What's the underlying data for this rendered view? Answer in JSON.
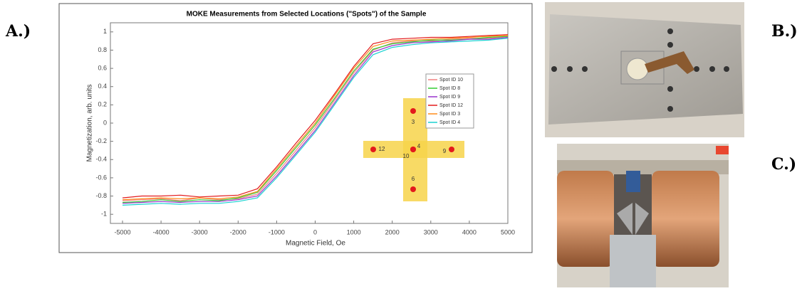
{
  "panel_labels": [
    "A.)",
    "B.)",
    "C.)"
  ],
  "chart_data": {
    "type": "line",
    "title": "MOKE Measurements from Selected Locations (\"Spots\") of the Sample",
    "x_label": "Magnetic Field, Oe",
    "y_label": "Magnetization, arb. units",
    "x": [
      -5000,
      -4500,
      -4000,
      -3500,
      -3000,
      -2500,
      -2000,
      -1500,
      -1000,
      -500,
      0,
      500,
      1000,
      1500,
      2000,
      2500,
      3000,
      3500,
      4000,
      4500,
      5000
    ],
    "series": [
      {
        "name": "Spot ID 10",
        "color": "#f08080",
        "values": [
          -0.85,
          -0.84,
          -0.83,
          -0.85,
          -0.82,
          -0.84,
          -0.83,
          -0.78,
          -0.55,
          -0.3,
          -0.05,
          0.25,
          0.55,
          0.8,
          0.88,
          0.9,
          0.9,
          0.92,
          0.93,
          0.93,
          0.95
        ]
      },
      {
        "name": "Spot ID 8",
        "color": "#33cc33",
        "values": [
          -0.87,
          -0.86,
          -0.84,
          -0.86,
          -0.84,
          -0.85,
          -0.82,
          -0.76,
          -0.52,
          -0.27,
          -0.02,
          0.27,
          0.57,
          0.81,
          0.87,
          0.89,
          0.91,
          0.91,
          0.92,
          0.94,
          0.95
        ]
      },
      {
        "name": "Spot ID 9",
        "color": "#9933cc",
        "values": [
          -0.88,
          -0.87,
          -0.86,
          -0.87,
          -0.86,
          -0.86,
          -0.84,
          -0.8,
          -0.58,
          -0.33,
          -0.08,
          0.22,
          0.52,
          0.78,
          0.85,
          0.88,
          0.89,
          0.9,
          0.92,
          0.92,
          0.94
        ]
      },
      {
        "name": "Spot ID 12",
        "color": "#e31a1c",
        "values": [
          -0.82,
          -0.8,
          -0.8,
          -0.79,
          -0.81,
          -0.8,
          -0.79,
          -0.72,
          -0.48,
          -0.22,
          0.03,
          0.32,
          0.62,
          0.87,
          0.92,
          0.93,
          0.94,
          0.94,
          0.95,
          0.96,
          0.97
        ]
      },
      {
        "name": "Spot ID 3",
        "color": "#ff8c1a",
        "values": [
          -0.84,
          -0.83,
          -0.82,
          -0.83,
          -0.82,
          -0.83,
          -0.81,
          -0.75,
          -0.5,
          -0.25,
          0.0,
          0.3,
          0.6,
          0.84,
          0.9,
          0.91,
          0.92,
          0.93,
          0.94,
          0.95,
          0.96
        ]
      },
      {
        "name": "Spot ID 4",
        "color": "#1ad1d1",
        "values": [
          -0.9,
          -0.89,
          -0.88,
          -0.89,
          -0.88,
          -0.88,
          -0.86,
          -0.82,
          -0.6,
          -0.35,
          -0.1,
          0.2,
          0.5,
          0.75,
          0.83,
          0.86,
          0.88,
          0.89,
          0.9,
          0.91,
          0.93
        ]
      }
    ],
    "xlim": [
      -5000,
      5000
    ],
    "xticks": [
      -5000,
      -4000,
      -3000,
      -2000,
      -1000,
      0,
      1000,
      2000,
      3000,
      4000,
      5000
    ],
    "ylim": [
      -1.1,
      1.1
    ],
    "yticks": [
      -1,
      -0.8,
      -0.6,
      -0.4,
      -0.2,
      0,
      0.2,
      0.4,
      0.6,
      0.8,
      1
    ],
    "legend": "right",
    "inset_labels": [
      "3",
      "12",
      "4",
      "10",
      "9",
      "6"
    ]
  }
}
